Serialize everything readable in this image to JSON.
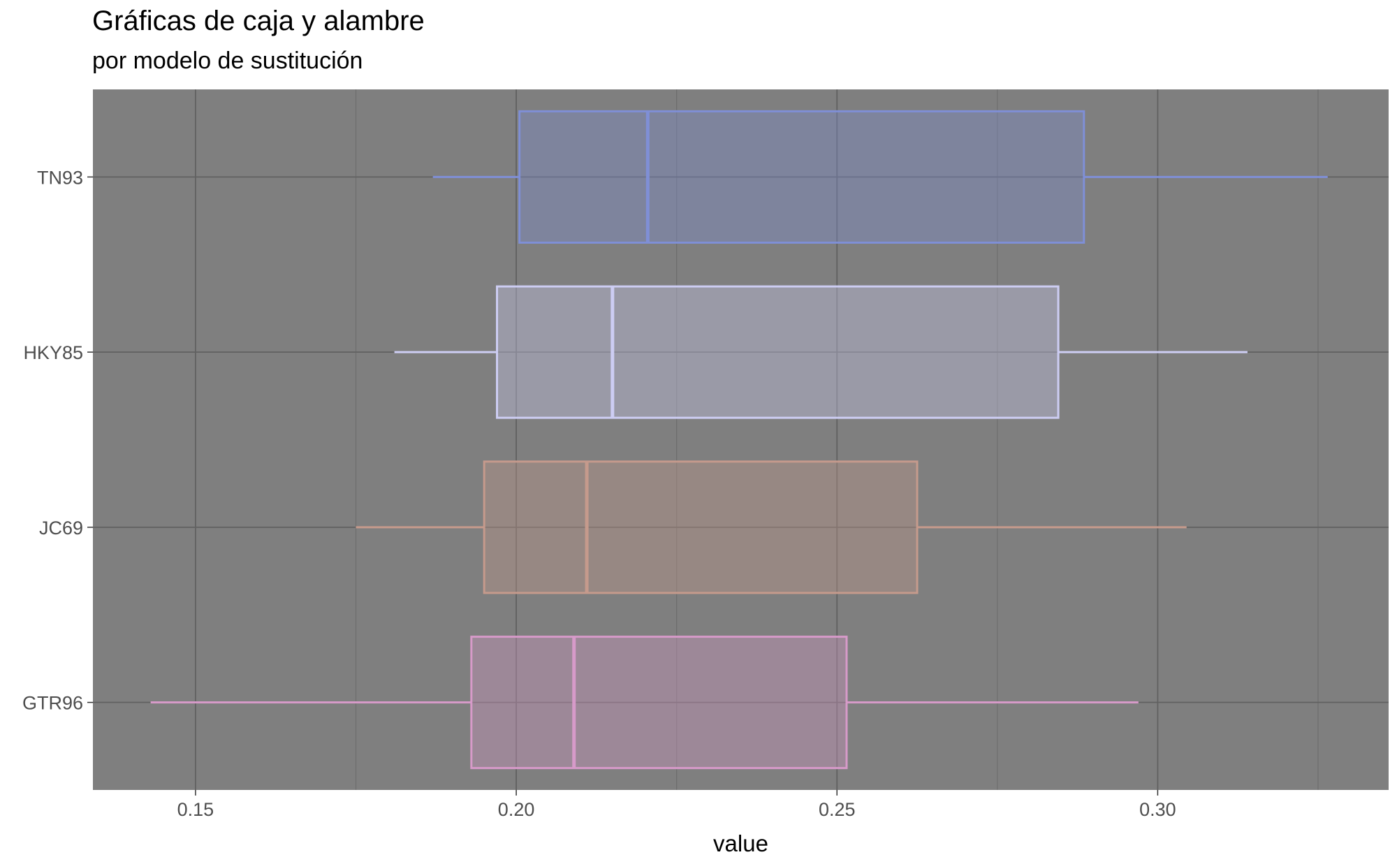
{
  "chart_data": {
    "type": "boxplot",
    "orientation": "horizontal",
    "title": "Gráficas de caja y alambre",
    "subtitle": "por modelo de sustitución",
    "xlabel": "value",
    "ylabel": "",
    "xlim": [
      0.134,
      0.336
    ],
    "x_ticks": [
      {
        "value": 0.15,
        "label": "0.15"
      },
      {
        "value": 0.2,
        "label": "0.20"
      },
      {
        "value": 0.25,
        "label": "0.25"
      },
      {
        "value": 0.3,
        "label": "0.30"
      }
    ],
    "x_minor_ticks": [
      0.175,
      0.225,
      0.275,
      0.325
    ],
    "categories": [
      "TN93",
      "HKY85",
      "JC69",
      "GTR96"
    ],
    "series": [
      {
        "category": "TN93",
        "whisker_low": 0.187,
        "q1": 0.2005,
        "median": 0.2205,
        "q3": 0.2885,
        "whisker_high": 0.3265,
        "color": "#7f8fd6"
      },
      {
        "category": "HKY85",
        "whisker_low": 0.181,
        "q1": 0.197,
        "median": 0.215,
        "q3": 0.2845,
        "whisker_high": 0.314,
        "color": "#cdcdf3"
      },
      {
        "category": "JC69",
        "whisker_low": 0.175,
        "q1": 0.195,
        "median": 0.211,
        "q3": 0.2625,
        "whisker_high": 0.3045,
        "color": "#c59a8c"
      },
      {
        "category": "GTR96",
        "whisker_low": 0.143,
        "q1": 0.193,
        "median": 0.209,
        "q3": 0.2515,
        "whisker_high": 0.297,
        "color": "#d79ac9"
      }
    ],
    "panel_background": "#7f7f7f",
    "grid": true
  }
}
